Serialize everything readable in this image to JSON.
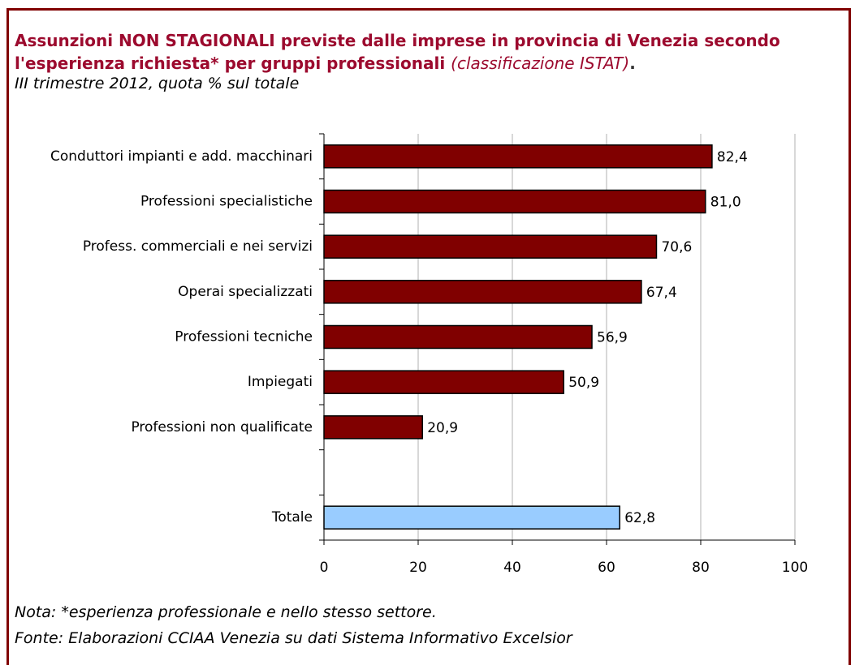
{
  "chart_data": {
    "type": "barh",
    "title": "Assunzioni NON STAGIONALI previste dalle imprese in provincia di Venezia secondo l'esperienza richiesta* per gruppi professionali",
    "title_note": "(classificazione ISTAT)",
    "title_end": ".",
    "subtitle": "III trimestre 2012, quota % sul totale",
    "categories": [
      "Conduttori impianti e add. macchinari",
      "Professioni specialistiche",
      "Profess. commerciali e nei servizi",
      "Operai specializzati",
      "Professioni tecniche",
      "Impiegati",
      "Professioni non qualificate",
      null,
      "Totale"
    ],
    "values": [
      82.4,
      81.0,
      70.6,
      67.4,
      56.9,
      50.9,
      20.9,
      null,
      62.8
    ],
    "value_labels": [
      "82,4",
      "81,0",
      "70,6",
      "67,4",
      "56,9",
      "50,9",
      "20,9",
      null,
      "62,8"
    ],
    "colors": [
      "#800000",
      "#800000",
      "#800000",
      "#800000",
      "#800000",
      "#800000",
      "#800000",
      null,
      "#99ccff"
    ],
    "xlim": [
      0,
      100
    ],
    "xticks": [
      0,
      20,
      40,
      60,
      80,
      100
    ],
    "grid": true,
    "notes": [
      "Nota: *esperienza professionale e nello stesso settore.",
      "Fonte: Elaborazioni CCIAA Venezia su dati Sistema Informativo Excelsior"
    ]
  }
}
